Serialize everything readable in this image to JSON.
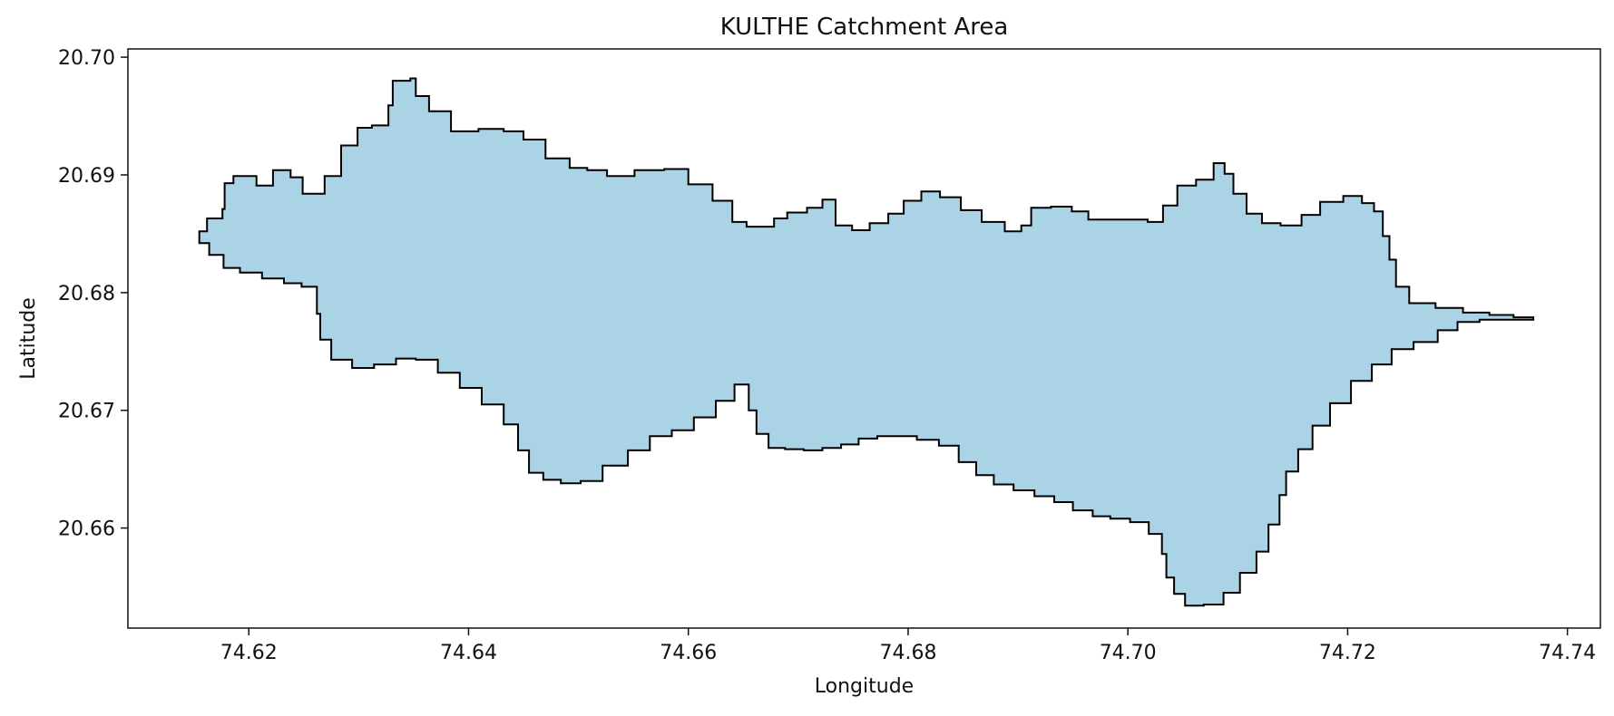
{
  "chart_data": {
    "type": "area",
    "title": "KULTHE Catchment Area",
    "xlabel": "Longitude",
    "ylabel": "Latitude",
    "xlim": [
      74.609,
      74.743
    ],
    "ylim": [
      20.6515,
      20.7007
    ],
    "xticks": [
      "74.62",
      "74.64",
      "74.66",
      "74.68",
      "74.70",
      "74.72",
      "74.74"
    ],
    "yticks": [
      "20.66",
      "20.67",
      "20.68",
      "20.69",
      "20.70"
    ],
    "grid": false,
    "colors": {
      "fill": "#abd3e6",
      "edge": "#000000"
    },
    "boundary": [
      [
        74.6155,
        20.6852
      ],
      [
        74.6162,
        20.6863
      ],
      [
        74.6176,
        20.6871
      ],
      [
        74.6178,
        20.6893
      ],
      [
        74.6186,
        20.6899
      ],
      [
        74.6207,
        20.6891
      ],
      [
        74.6222,
        20.6904
      ],
      [
        74.6238,
        20.6898
      ],
      [
        74.6249,
        20.6884
      ],
      [
        74.6269,
        20.6899
      ],
      [
        74.6284,
        20.6925
      ],
      [
        74.6299,
        20.694
      ],
      [
        74.6312,
        20.6942
      ],
      [
        74.6327,
        20.6959
      ],
      [
        74.6331,
        20.698
      ],
      [
        74.6347,
        20.6982
      ],
      [
        74.6352,
        20.6967
      ],
      [
        74.6364,
        20.6954
      ],
      [
        74.6384,
        20.6937
      ],
      [
        74.6409,
        20.6939
      ],
      [
        74.6432,
        20.6937
      ],
      [
        74.645,
        20.693
      ],
      [
        74.647,
        20.6914
      ],
      [
        74.6492,
        20.6906
      ],
      [
        74.6508,
        20.6904
      ],
      [
        74.6526,
        20.6899
      ],
      [
        74.6551,
        20.6904
      ],
      [
        74.6578,
        20.6905
      ],
      [
        74.66,
        20.6892
      ],
      [
        74.6622,
        20.6878
      ],
      [
        74.664,
        20.686
      ],
      [
        74.6653,
        20.6856
      ],
      [
        74.6678,
        20.6863
      ],
      [
        74.669,
        20.6868
      ],
      [
        74.6708,
        20.6872
      ],
      [
        74.6722,
        20.6879
      ],
      [
        74.6734,
        20.6857
      ],
      [
        74.6749,
        20.6853
      ],
      [
        74.6765,
        20.6859
      ],
      [
        74.6782,
        20.6867
      ],
      [
        74.6796,
        20.6878
      ],
      [
        74.6812,
        20.6886
      ],
      [
        74.6829,
        20.6881
      ],
      [
        74.6848,
        20.687
      ],
      [
        74.6867,
        20.686
      ],
      [
        74.6888,
        20.6852
      ],
      [
        74.6903,
        20.6857
      ],
      [
        74.6912,
        20.6872
      ],
      [
        74.693,
        20.6873
      ],
      [
        74.6949,
        20.6869
      ],
      [
        74.6964,
        20.6862
      ],
      [
        74.6981,
        20.6862
      ],
      [
        74.7002,
        20.6862
      ],
      [
        74.7018,
        20.686
      ],
      [
        74.7032,
        20.6874
      ],
      [
        74.7045,
        20.6891
      ],
      [
        74.7062,
        20.6896
      ],
      [
        74.7078,
        20.691
      ],
      [
        74.7088,
        20.6901
      ],
      [
        74.7096,
        20.6884
      ],
      [
        74.7108,
        20.6867
      ],
      [
        74.7122,
        20.6859
      ],
      [
        74.7139,
        20.6857
      ],
      [
        74.7158,
        20.6866
      ],
      [
        74.7175,
        20.6877
      ],
      [
        74.7196,
        20.6882
      ],
      [
        74.7213,
        20.6876
      ],
      [
        74.7224,
        20.6869
      ],
      [
        74.7232,
        20.6848
      ],
      [
        74.7238,
        20.6828
      ],
      [
        74.7244,
        20.6805
      ],
      [
        74.7256,
        20.6791
      ],
      [
        74.728,
        20.6787
      ],
      [
        74.7305,
        20.6783
      ],
      [
        74.7329,
        20.6781
      ],
      [
        74.7351,
        20.6779
      ],
      [
        74.7369,
        20.6779
      ],
      [
        74.7369,
        20.6777
      ],
      [
        74.732,
        20.6775
      ],
      [
        74.73,
        20.6768
      ],
      [
        74.7282,
        20.6758
      ],
      [
        74.726,
        20.6752
      ],
      [
        74.724,
        20.6739
      ],
      [
        74.7222,
        20.6725
      ],
      [
        74.7203,
        20.6706
      ],
      [
        74.7184,
        20.6687
      ],
      [
        74.7168,
        20.6667
      ],
      [
        74.7155,
        20.6648
      ],
      [
        74.7144,
        20.6628
      ],
      [
        74.7138,
        20.6603
      ],
      [
        74.7128,
        20.658
      ],
      [
        74.7117,
        20.6562
      ],
      [
        74.7102,
        20.6545
      ],
      [
        74.7087,
        20.6535
      ],
      [
        74.7069,
        20.6534
      ],
      [
        74.7052,
        20.6544
      ],
      [
        74.7042,
        20.6558
      ],
      [
        74.7035,
        20.6578
      ],
      [
        74.7031,
        20.6595
      ],
      [
        74.7019,
        20.6605
      ],
      [
        74.7002,
        20.6608
      ],
      [
        74.6984,
        20.661
      ],
      [
        74.6968,
        20.6615
      ],
      [
        74.695,
        20.6622
      ],
      [
        74.6933,
        20.6627
      ],
      [
        74.6915,
        20.6632
      ],
      [
        74.6896,
        20.6637
      ],
      [
        74.6878,
        20.6645
      ],
      [
        74.6862,
        20.6656
      ],
      [
        74.6846,
        20.667
      ],
      [
        74.6828,
        20.6675
      ],
      [
        74.6808,
        20.6678
      ],
      [
        74.6788,
        20.6678
      ],
      [
        74.6772,
        20.6676
      ],
      [
        74.6755,
        20.6671
      ],
      [
        74.6739,
        20.6668
      ],
      [
        74.6722,
        20.6666
      ],
      [
        74.6705,
        20.6667
      ],
      [
        74.6688,
        20.6668
      ],
      [
        74.6673,
        20.668
      ],
      [
        74.6662,
        20.67
      ],
      [
        74.6655,
        20.6722
      ],
      [
        74.6642,
        20.6708
      ],
      [
        74.6625,
        20.6694
      ],
      [
        74.6605,
        20.6683
      ],
      [
        74.6585,
        20.6678
      ],
      [
        74.6565,
        20.6666
      ],
      [
        74.6545,
        20.6653
      ],
      [
        74.6522,
        20.664
      ],
      [
        74.6502,
        20.6638
      ],
      [
        74.6484,
        20.6641
      ],
      [
        74.6468,
        20.6647
      ],
      [
        74.6455,
        20.6666
      ],
      [
        74.6445,
        20.6688
      ],
      [
        74.6432,
        20.6705
      ],
      [
        74.6412,
        20.6719
      ],
      [
        74.6392,
        20.6732
      ],
      [
        74.6372,
        20.6743
      ],
      [
        74.6352,
        20.6744
      ],
      [
        74.6334,
        20.6739
      ],
      [
        74.6314,
        20.6736
      ],
      [
        74.6294,
        20.6743
      ],
      [
        74.6275,
        20.676
      ],
      [
        74.6265,
        20.6782
      ],
      [
        74.6262,
        20.6805
      ],
      [
        74.6248,
        20.6808
      ],
      [
        74.6232,
        20.6812
      ],
      [
        74.6212,
        20.6817
      ],
      [
        74.6192,
        20.6821
      ],
      [
        74.6177,
        20.6832
      ],
      [
        74.6164,
        20.6842
      ]
    ]
  }
}
